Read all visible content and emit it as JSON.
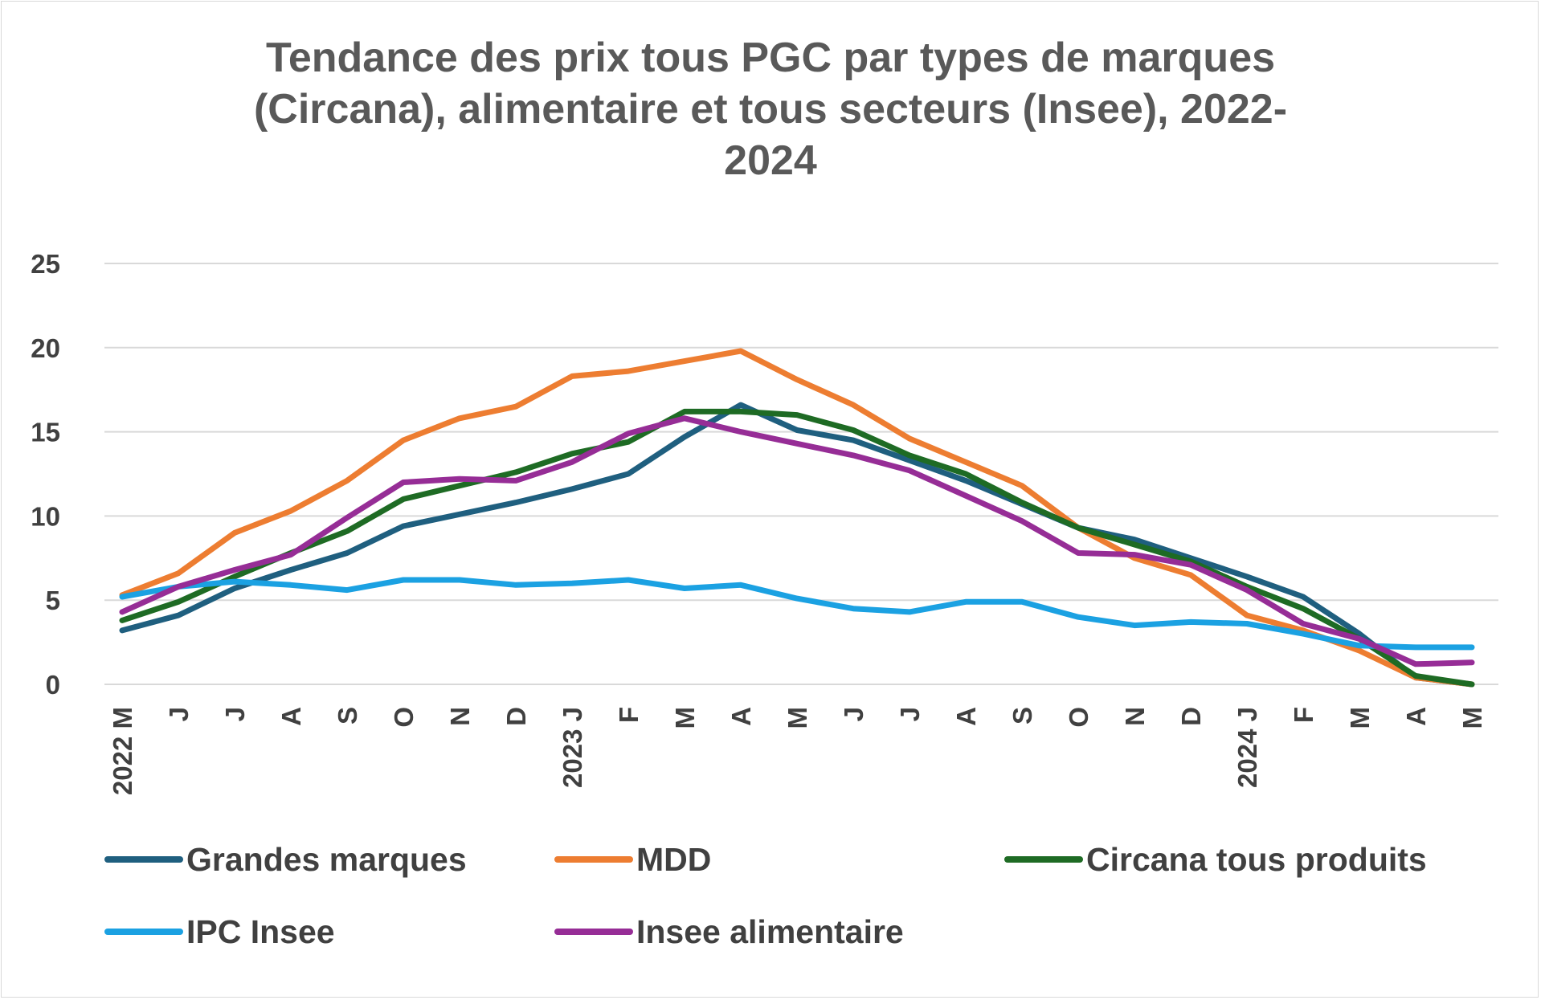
{
  "chart_data": {
    "type": "line",
    "title_lines": [
      "Tendance des prix tous PGC par types de marques",
      "(Circana), alimentaire et tous secteurs (Insee), 2022-",
      "2024"
    ],
    "categories": [
      "2022 M",
      "J",
      "J",
      "A",
      "S",
      "O",
      "N",
      "D",
      "2023 J",
      "F",
      "M",
      "A",
      "M",
      "J",
      "J",
      "A",
      "S",
      "O",
      "N",
      "D",
      "2024 J",
      "F",
      "M",
      "A",
      "M"
    ],
    "ylim": [
      0,
      25
    ],
    "yticks": [
      0,
      5,
      10,
      15,
      20,
      25
    ],
    "grid": true,
    "legend_position": "bottom",
    "series": [
      {
        "name": "Grandes marques",
        "color": "#1f5f7f",
        "values": [
          3.2,
          4.1,
          5.7,
          6.8,
          7.8,
          9.4,
          10.1,
          10.8,
          11.6,
          12.5,
          14.7,
          16.6,
          15.1,
          14.5,
          13.3,
          12.1,
          10.7,
          9.3,
          8.6,
          7.5,
          6.4,
          5.2,
          3.0,
          0.4,
          0.0
        ]
      },
      {
        "name": "MDD",
        "color": "#ed7d31",
        "values": [
          5.3,
          6.6,
          9.0,
          10.3,
          12.1,
          14.5,
          15.8,
          16.5,
          18.3,
          18.6,
          19.2,
          19.8,
          18.1,
          16.6,
          14.6,
          13.2,
          11.8,
          9.3,
          7.5,
          6.5,
          4.1,
          3.2,
          2.0,
          0.4,
          0.0
        ]
      },
      {
        "name": "Circana tous produits",
        "color": "#1e6b24",
        "values": [
          3.8,
          4.9,
          6.4,
          7.8,
          9.1,
          11.0,
          11.8,
          12.6,
          13.7,
          14.4,
          16.2,
          16.2,
          16.0,
          15.1,
          13.6,
          12.5,
          10.8,
          9.3,
          8.3,
          7.3,
          5.8,
          4.5,
          2.7,
          0.5,
          0.0
        ]
      },
      {
        "name": "IPC Insee",
        "color": "#1ba1e2",
        "values": [
          5.2,
          5.8,
          6.1,
          5.9,
          5.6,
          6.2,
          6.2,
          5.9,
          6.0,
          6.2,
          5.7,
          5.9,
          5.1,
          4.5,
          4.3,
          4.9,
          4.9,
          4.0,
          3.5,
          3.7,
          3.6,
          3.0,
          2.3,
          2.2,
          2.2
        ]
      },
      {
        "name": "Insee alimentaire",
        "color": "#962d96",
        "values": [
          4.3,
          5.8,
          6.8,
          7.7,
          9.9,
          12.0,
          12.2,
          12.1,
          13.2,
          14.9,
          15.8,
          15.0,
          14.3,
          13.6,
          12.7,
          11.2,
          9.7,
          7.8,
          7.7,
          7.1,
          5.6,
          3.6,
          2.7,
          1.2,
          1.3
        ]
      }
    ]
  }
}
